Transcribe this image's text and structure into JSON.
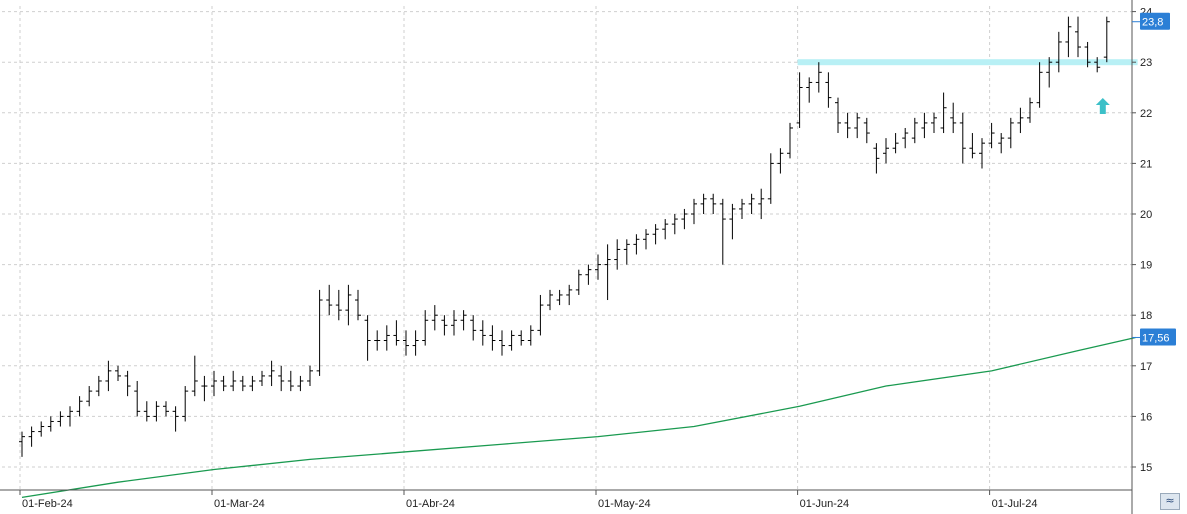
{
  "chart_data": {
    "type": "ohlc",
    "ylim": [
      14.5,
      24.3
    ],
    "y_ticks": [
      "15",
      "16",
      "17",
      "18",
      "19",
      "20",
      "21",
      "22",
      "23",
      "24"
    ],
    "x_ticks": [
      {
        "label": "01-Feb-24",
        "index": 0
      },
      {
        "label": "01-Mar-24",
        "index": 20
      },
      {
        "label": "01-Abr-24",
        "index": 40
      },
      {
        "label": "01-May-24",
        "index": 60
      },
      {
        "label": "01-Jun-24",
        "index": 81
      },
      {
        "label": "01-Jul-24",
        "index": 101
      }
    ],
    "grid": true,
    "last_price": "23,8",
    "ma_last": "17,56",
    "resistance": 23.0,
    "colors": {
      "bars": "#000000",
      "ma_line": "#1a9a50",
      "badge": "#2b7fd6",
      "resistance": "#b8f0f5",
      "arrow": "#3cc0c8"
    },
    "ma_series": [
      [
        0,
        14.4
      ],
      [
        10,
        14.7
      ],
      [
        20,
        14.95
      ],
      [
        30,
        15.15
      ],
      [
        40,
        15.3
      ],
      [
        50,
        15.45
      ],
      [
        60,
        15.6
      ],
      [
        70,
        15.8
      ],
      [
        81,
        16.2
      ],
      [
        90,
        16.6
      ],
      [
        101,
        16.9
      ],
      [
        110,
        17.3
      ],
      [
        116,
        17.56
      ]
    ],
    "ohlc": [
      [
        15.5,
        15.7,
        15.2,
        15.6
      ],
      [
        15.6,
        15.8,
        15.4,
        15.7
      ],
      [
        15.7,
        15.9,
        15.6,
        15.8
      ],
      [
        15.8,
        16.0,
        15.7,
        15.9
      ],
      [
        15.9,
        16.1,
        15.8,
        16.0
      ],
      [
        16.0,
        16.2,
        15.8,
        16.1
      ],
      [
        16.1,
        16.4,
        16.0,
        16.3
      ],
      [
        16.3,
        16.6,
        16.2,
        16.5
      ],
      [
        16.5,
        16.8,
        16.4,
        16.7
      ],
      [
        16.7,
        17.1,
        16.5,
        16.9
      ],
      [
        16.9,
        17.0,
        16.7,
        16.8
      ],
      [
        16.8,
        16.9,
        16.4,
        16.6
      ],
      [
        16.5,
        16.7,
        16.0,
        16.1
      ],
      [
        16.1,
        16.3,
        15.9,
        16.0
      ],
      [
        16.0,
        16.3,
        15.9,
        16.2
      ],
      [
        16.2,
        16.3,
        16.0,
        16.1
      ],
      [
        16.1,
        16.2,
        15.7,
        16.0
      ],
      [
        16.0,
        16.6,
        15.9,
        16.5
      ],
      [
        16.5,
        17.2,
        16.4,
        16.7
      ],
      [
        16.6,
        16.8,
        16.3,
        16.6
      ],
      [
        16.6,
        16.9,
        16.4,
        16.7
      ],
      [
        16.7,
        16.8,
        16.5,
        16.6
      ],
      [
        16.6,
        16.9,
        16.5,
        16.7
      ],
      [
        16.7,
        16.8,
        16.5,
        16.6
      ],
      [
        16.6,
        16.8,
        16.5,
        16.7
      ],
      [
        16.7,
        16.9,
        16.6,
        16.8
      ],
      [
        16.8,
        17.1,
        16.6,
        16.9
      ],
      [
        16.8,
        17.0,
        16.5,
        16.7
      ],
      [
        16.7,
        16.9,
        16.5,
        16.6
      ],
      [
        16.6,
        16.8,
        16.5,
        16.7
      ],
      [
        16.7,
        17.0,
        16.6,
        16.9
      ],
      [
        16.9,
        18.5,
        16.8,
        18.3
      ],
      [
        18.3,
        18.6,
        18.0,
        18.2
      ],
      [
        18.2,
        18.5,
        17.9,
        18.1
      ],
      [
        18.1,
        18.6,
        17.8,
        18.4
      ],
      [
        18.3,
        18.5,
        17.9,
        18.0
      ],
      [
        17.9,
        18.0,
        17.1,
        17.5
      ],
      [
        17.5,
        17.7,
        17.3,
        17.5
      ],
      [
        17.5,
        17.8,
        17.3,
        17.6
      ],
      [
        17.6,
        17.9,
        17.4,
        17.5
      ],
      [
        17.5,
        17.7,
        17.2,
        17.4
      ],
      [
        17.4,
        17.7,
        17.2,
        17.5
      ],
      [
        17.5,
        18.1,
        17.4,
        17.9
      ],
      [
        17.9,
        18.2,
        17.7,
        18.0
      ],
      [
        17.9,
        18.0,
        17.6,
        17.8
      ],
      [
        17.8,
        18.1,
        17.6,
        17.9
      ],
      [
        17.9,
        18.1,
        17.7,
        18.0
      ],
      [
        17.9,
        18.0,
        17.5,
        17.7
      ],
      [
        17.7,
        17.9,
        17.4,
        17.6
      ],
      [
        17.6,
        17.8,
        17.3,
        17.5
      ],
      [
        17.5,
        17.7,
        17.2,
        17.4
      ],
      [
        17.4,
        17.7,
        17.3,
        17.6
      ],
      [
        17.6,
        17.7,
        17.4,
        17.5
      ],
      [
        17.5,
        17.8,
        17.4,
        17.7
      ],
      [
        17.7,
        18.4,
        17.6,
        18.2
      ],
      [
        18.2,
        18.5,
        18.1,
        18.4
      ],
      [
        18.3,
        18.5,
        18.2,
        18.4
      ],
      [
        18.4,
        18.6,
        18.2,
        18.5
      ],
      [
        18.5,
        18.9,
        18.4,
        18.8
      ],
      [
        18.8,
        19.0,
        18.6,
        18.9
      ],
      [
        18.9,
        19.2,
        18.7,
        19.0
      ],
      [
        19.0,
        19.4,
        18.3,
        19.1
      ],
      [
        19.1,
        19.5,
        18.9,
        19.3
      ],
      [
        19.3,
        19.5,
        19.0,
        19.4
      ],
      [
        19.4,
        19.6,
        19.2,
        19.5
      ],
      [
        19.5,
        19.7,
        19.3,
        19.6
      ],
      [
        19.6,
        19.8,
        19.4,
        19.7
      ],
      [
        19.7,
        19.9,
        19.5,
        19.8
      ],
      [
        19.8,
        20.0,
        19.6,
        19.9
      ],
      [
        19.9,
        20.1,
        19.7,
        20.0
      ],
      [
        20.0,
        20.3,
        19.8,
        20.2
      ],
      [
        20.2,
        20.4,
        20.0,
        20.3
      ],
      [
        20.3,
        20.4,
        20.0,
        20.2
      ],
      [
        20.2,
        20.3,
        19.0,
        19.9
      ],
      [
        19.9,
        20.2,
        19.5,
        20.1
      ],
      [
        20.1,
        20.3,
        19.9,
        20.2
      ],
      [
        20.2,
        20.4,
        20.0,
        20.3
      ],
      [
        20.2,
        20.5,
        19.9,
        20.3
      ],
      [
        20.3,
        21.2,
        20.2,
        21.0
      ],
      [
        21.0,
        21.3,
        20.8,
        21.2
      ],
      [
        21.2,
        21.8,
        21.1,
        21.7
      ],
      [
        21.8,
        22.8,
        21.7,
        22.5
      ],
      [
        22.5,
        22.7,
        22.2,
        22.6
      ],
      [
        22.6,
        23.0,
        22.4,
        22.8
      ],
      [
        22.6,
        22.8,
        22.1,
        22.3
      ],
      [
        22.2,
        22.3,
        21.6,
        21.8
      ],
      [
        21.8,
        22.0,
        21.5,
        21.7
      ],
      [
        21.7,
        22.0,
        21.5,
        21.9
      ],
      [
        21.8,
        21.9,
        21.4,
        21.6
      ],
      [
        21.3,
        21.4,
        20.8,
        21.1
      ],
      [
        21.2,
        21.5,
        21.0,
        21.3
      ],
      [
        21.3,
        21.6,
        21.2,
        21.4
      ],
      [
        21.5,
        21.7,
        21.3,
        21.6
      ],
      [
        21.5,
        21.9,
        21.4,
        21.8
      ],
      [
        21.7,
        22.0,
        21.5,
        21.8
      ],
      [
        21.8,
        22.0,
        21.6,
        21.9
      ],
      [
        21.7,
        22.4,
        21.6,
        22.1
      ],
      [
        21.9,
        22.2,
        21.6,
        21.8
      ],
      [
        21.8,
        22.0,
        21.0,
        21.3
      ],
      [
        21.3,
        21.6,
        21.1,
        21.2
      ],
      [
        21.2,
        21.5,
        20.9,
        21.4
      ],
      [
        21.4,
        21.8,
        21.3,
        21.6
      ],
      [
        21.4,
        21.6,
        21.2,
        21.5
      ],
      [
        21.5,
        21.9,
        21.3,
        21.8
      ],
      [
        21.8,
        22.1,
        21.6,
        21.9
      ],
      [
        21.9,
        22.3,
        21.8,
        22.2
      ],
      [
        22.2,
        23.0,
        22.1,
        22.8
      ],
      [
        22.8,
        23.1,
        22.5,
        23.0
      ],
      [
        23.0,
        23.6,
        22.8,
        23.4
      ],
      [
        23.4,
        23.9,
        23.1,
        23.7
      ],
      [
        23.6,
        23.9,
        23.1,
        23.3
      ],
      [
        23.3,
        23.4,
        22.9,
        23.0
      ],
      [
        23.0,
        23.1,
        22.8,
        22.9
      ],
      [
        23.1,
        23.9,
        23.0,
        23.8
      ]
    ]
  }
}
